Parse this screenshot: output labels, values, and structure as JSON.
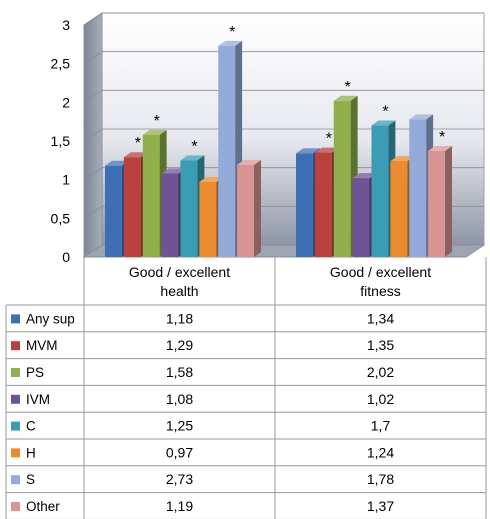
{
  "chart_data": {
    "type": "bar",
    "style": "3d-clustered-column-with-data-table",
    "categories": [
      [
        "Good / excellent",
        "health"
      ],
      [
        "Good / excellent",
        "fitness"
      ]
    ],
    "ylim": [
      0,
      3
    ],
    "yticks": [
      "0",
      "0,5",
      "1",
      "1,5",
      "2",
      "2,5",
      "3"
    ],
    "ytick_values": [
      0,
      0.5,
      1,
      1.5,
      2,
      2.5,
      3
    ],
    "grid": true,
    "significance_marker": "*",
    "series": [
      {
        "name": "Any sup",
        "color": "#3d6fb5",
        "values": [
          1.18,
          1.34
        ],
        "labels": [
          "1,18",
          "1,34"
        ],
        "significant": [
          false,
          false
        ]
      },
      {
        "name": "MVM",
        "color": "#b8403d",
        "values": [
          1.29,
          1.35
        ],
        "labels": [
          "1,29",
          "1,35"
        ],
        "significant": [
          true,
          true
        ]
      },
      {
        "name": "PS",
        "color": "#8fb04a",
        "values": [
          1.58,
          2.02
        ],
        "labels": [
          "1,58",
          "2,02"
        ],
        "significant": [
          true,
          true
        ]
      },
      {
        "name": "IVM",
        "color": "#6e5397",
        "values": [
          1.08,
          1.02
        ],
        "labels": [
          "1,08",
          "1,02"
        ],
        "significant": [
          false,
          false
        ]
      },
      {
        "name": "C",
        "color": "#3a9db3",
        "values": [
          1.25,
          1.7
        ],
        "labels": [
          "1,25",
          "1,7"
        ],
        "significant": [
          true,
          true
        ]
      },
      {
        "name": "H",
        "color": "#e98b2e",
        "values": [
          0.97,
          1.24
        ],
        "labels": [
          "0,97",
          "1,24"
        ],
        "significant": [
          false,
          false
        ]
      },
      {
        "name": "S",
        "color": "#94abd9",
        "values": [
          2.73,
          1.78
        ],
        "labels": [
          "2,73",
          "1,78"
        ],
        "significant": [
          true,
          false
        ]
      },
      {
        "name": "Other",
        "color": "#d99494",
        "values": [
          1.19,
          1.37
        ],
        "labels": [
          "1,19",
          "1,37"
        ],
        "significant": [
          false,
          true
        ]
      }
    ]
  }
}
